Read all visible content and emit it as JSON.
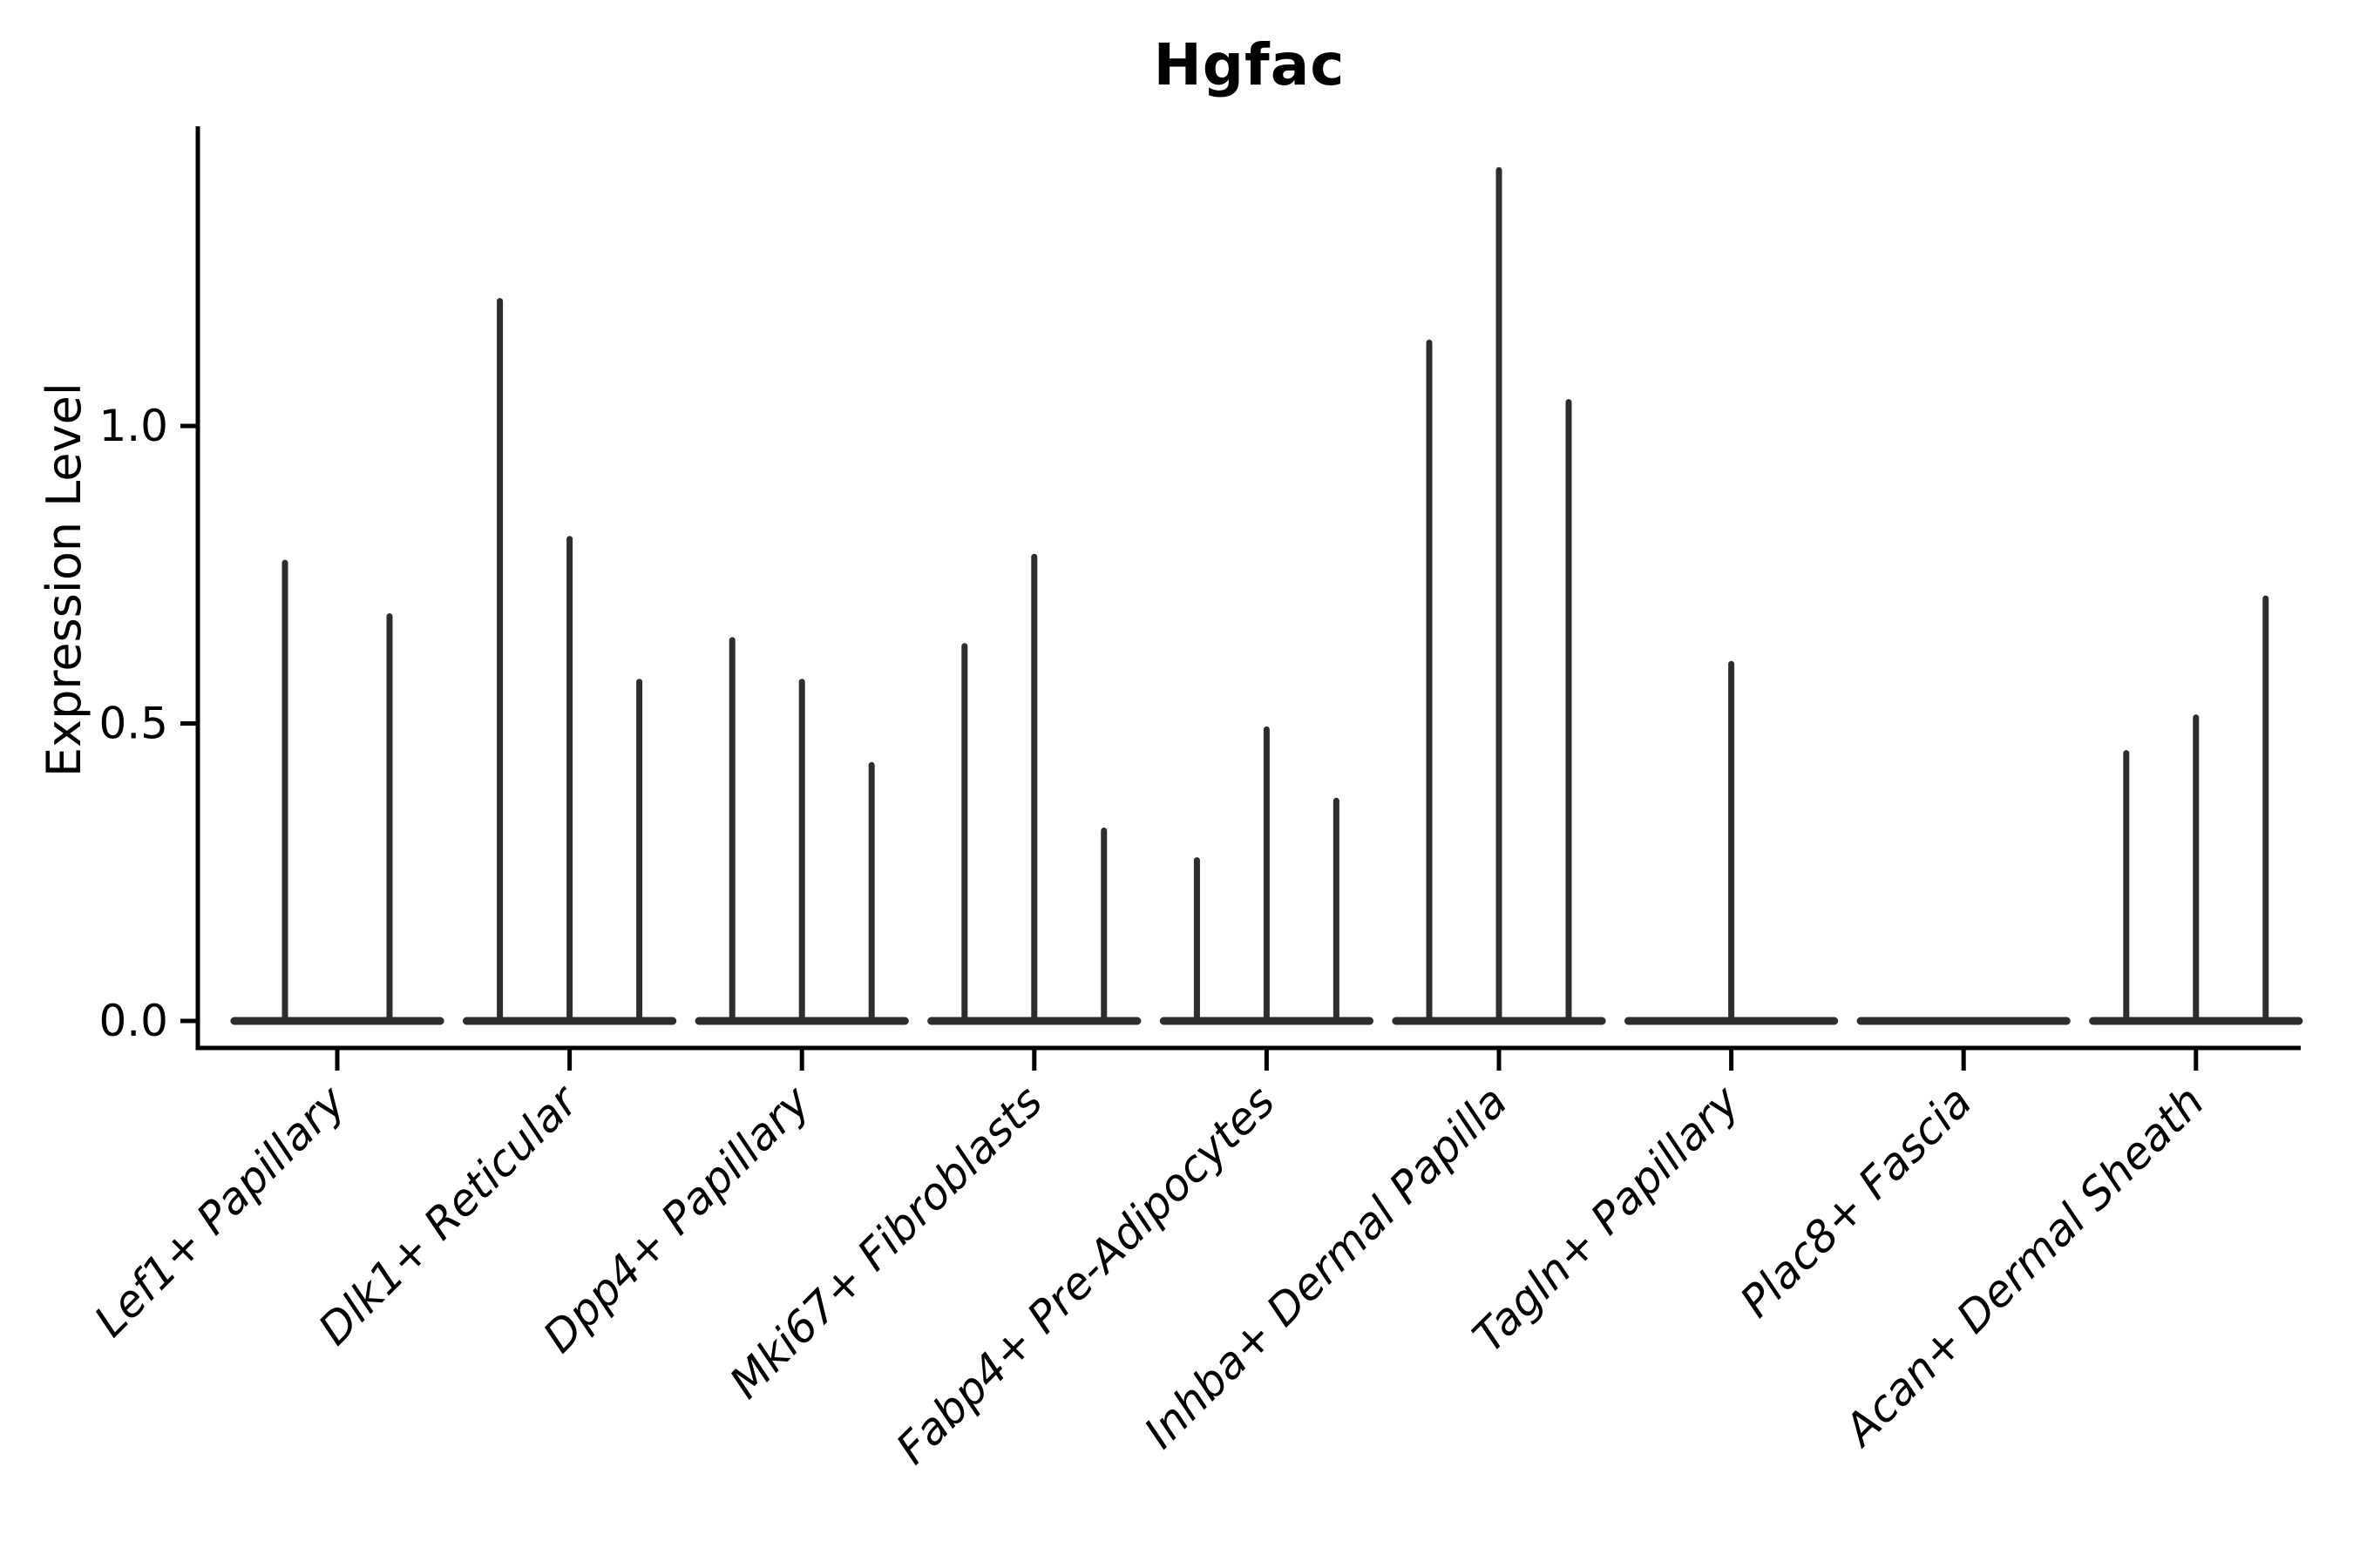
{
  "chart_data": {
    "type": "violin",
    "title": "Hgfac",
    "ylabel": "Expression Level",
    "yticks": [
      0.0,
      0.5,
      1.0
    ],
    "ylim": [
      0,
      1.5
    ],
    "grid": false,
    "legend": "none",
    "categories": [
      "Lef1+ Papillary",
      "Dlk1+ Reticular",
      "Dpp4+ Papillary",
      "Mki67+ Fibroblasts",
      "Fabp4+ Pre-Adipocytes",
      "Inhba+ Dermal Papilla",
      "Tagln+ Papillary",
      "Plac8+ Fascia",
      "Acan+ Dermal Sheath"
    ],
    "groups": [
      {
        "category": "Lef1+ Papillary",
        "violins": [
          {
            "offset": -0.225,
            "max": 0.77
          },
          {
            "offset": 0.225,
            "max": 0.68
          }
        ]
      },
      {
        "category": "Dlk1+ Reticular",
        "violins": [
          {
            "offset": -0.3,
            "max": 1.21
          },
          {
            "offset": 0,
            "max": 0.81
          },
          {
            "offset": 0.3,
            "max": 0.57
          }
        ]
      },
      {
        "category": "Dpp4+ Papillary",
        "violins": [
          {
            "offset": -0.3,
            "max": 0.64
          },
          {
            "offset": 0,
            "max": 0.57
          },
          {
            "offset": 0.3,
            "max": 0.43
          }
        ]
      },
      {
        "category": "Mki67+ Fibroblasts",
        "violins": [
          {
            "offset": -0.3,
            "max": 0.63
          },
          {
            "offset": 0,
            "max": 0.78
          },
          {
            "offset": 0.3,
            "max": 0.32
          }
        ]
      },
      {
        "category": "Fabp4+ Pre-Adipocytes",
        "violins": [
          {
            "offset": -0.3,
            "max": 0.27
          },
          {
            "offset": 0,
            "max": 0.49
          },
          {
            "offset": 0.3,
            "max": 0.37
          }
        ]
      },
      {
        "category": "Inhba+ Dermal Papilla",
        "violins": [
          {
            "offset": -0.3,
            "max": 1.14
          },
          {
            "offset": 0,
            "max": 1.43
          },
          {
            "offset": 0.3,
            "max": 1.04
          }
        ]
      },
      {
        "category": "Tagln+ Papillary",
        "violins": [
          {
            "offset": 0,
            "max": 0.6
          }
        ]
      },
      {
        "category": "Plac8+ Fascia",
        "violins": []
      },
      {
        "category": "Acan+ Dermal Sheath",
        "violins": [
          {
            "offset": -0.3,
            "max": 0.45
          },
          {
            "offset": 0,
            "max": 0.51
          },
          {
            "offset": 0.3,
            "max": 0.71
          }
        ]
      }
    ],
    "baseline_half_width": 0.46,
    "colors": {
      "violin": "#2d2d2d",
      "axis": "#000000",
      "text": "#000000",
      "background": "#ffffff"
    }
  }
}
